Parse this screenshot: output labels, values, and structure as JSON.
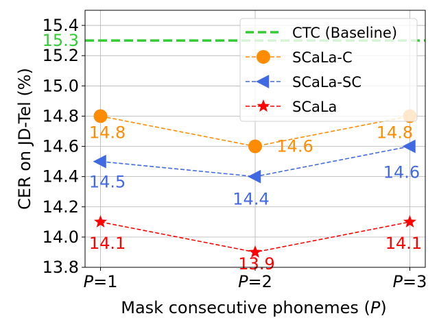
{
  "chart_data": {
    "type": "line",
    "categories": [
      "P=1",
      "P=2",
      "P=3"
    ],
    "category_italic_prefix": "P",
    "xlabel": "Mask consecutive phonemes (P)",
    "ylabel": "CER on JD-Tel (%)",
    "ylim": [
      13.8,
      15.5
    ],
    "yticks": [
      "13.8",
      "14.0",
      "14.2",
      "14.4",
      "14.6",
      "14.8",
      "15.0",
      "15.2",
      "15.4"
    ],
    "grid": true,
    "legend_position": "top-right",
    "baseline": {
      "name": "CTC (Baseline)",
      "value": 15.3,
      "label": "15.3",
      "color": "#33cc33"
    },
    "series": [
      {
        "name": "SCaLa-C",
        "values": [
          14.8,
          14.6,
          14.8
        ],
        "labels": [
          "14.8",
          "14.6",
          "14.8"
        ],
        "color": "#ff8c00",
        "marker": "circle"
      },
      {
        "name": "SCaLa-SC",
        "values": [
          14.5,
          14.4,
          14.6
        ],
        "labels": [
          "14.5",
          "14.4",
          "14.6"
        ],
        "color": "#4169e1",
        "marker": "triangle-left"
      },
      {
        "name": "SCaLa",
        "values": [
          14.1,
          13.9,
          14.1
        ],
        "labels": [
          "14.1",
          "13.9",
          "14.1"
        ],
        "color": "#ff0000",
        "marker": "star"
      }
    ]
  }
}
